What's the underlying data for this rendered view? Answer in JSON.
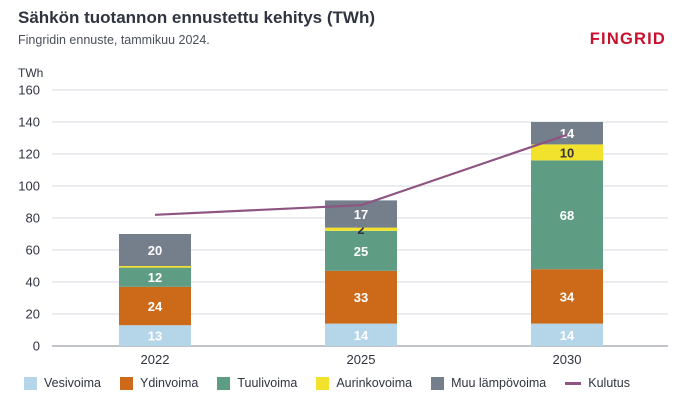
{
  "header": {
    "title": "Sähkön tuotannon ennustettu kehitys (TWh)",
    "subtitle": "Fingridin ennuste, tammikuu 2024.",
    "brand": "FINGRID"
  },
  "chart_data": {
    "type": "bar",
    "stacked": true,
    "title": "Sähkön tuotannon ennustettu kehitys (TWh)",
    "subtitle": "Fingridin ennuste, tammikuu 2024.",
    "ylabel": "TWh",
    "xlabel": "",
    "ylim": [
      0,
      160
    ],
    "yticks": [
      0,
      20,
      40,
      60,
      80,
      100,
      120,
      140,
      160
    ],
    "grid": true,
    "categories": [
      "2022",
      "2025",
      "2030"
    ],
    "series": [
      {
        "name": "Vesivoima",
        "color": "#b5d5e8",
        "values": [
          13,
          14,
          14
        ],
        "labels": [
          "13",
          "14",
          "14"
        ]
      },
      {
        "name": "Ydinvoima",
        "color": "#cc6a1a",
        "values": [
          24,
          33,
          34
        ],
        "labels": [
          "24",
          "33",
          "34"
        ]
      },
      {
        "name": "Tuulivoima",
        "color": "#5e9c84",
        "values": [
          12,
          25,
          68
        ],
        "labels": [
          "12",
          "25",
          "68"
        ]
      },
      {
        "name": "Aurinkovoima",
        "color": "#f3e22d",
        "values": [
          1,
          2,
          10
        ],
        "labels": [
          "",
          "2",
          "10"
        ]
      },
      {
        "name": "Muu lämpövoima",
        "color": "#757e8b",
        "values": [
          20,
          17,
          14
        ],
        "labels": [
          "20",
          "17",
          "14"
        ]
      }
    ],
    "line": {
      "name": "Kulutus",
      "color": "#8e5482",
      "values": [
        82,
        88,
        132
      ]
    },
    "legend_position": "bottom"
  }
}
